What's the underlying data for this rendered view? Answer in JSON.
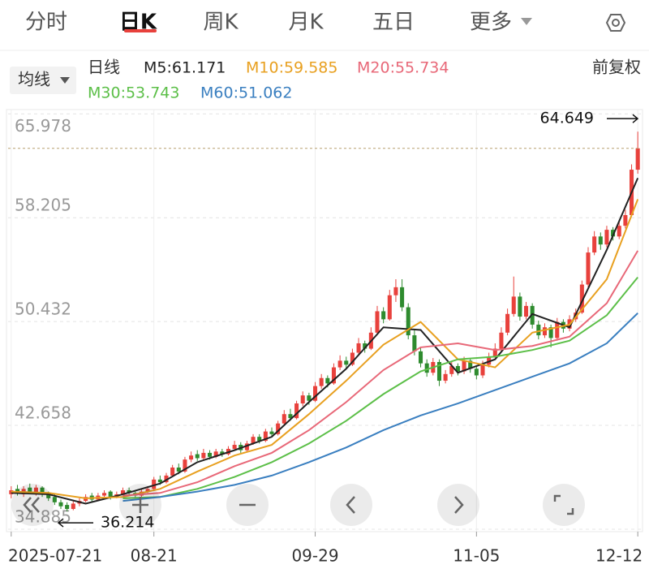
{
  "tabs": [
    "分时",
    "日K",
    "周K",
    "月K",
    "五日",
    "更多"
  ],
  "toolbar": {
    "ma_button": "均线",
    "period": "日线",
    "adjust": "前复权"
  },
  "chart_data": {
    "type": "candlestick",
    "candles": [
      [
        37.5,
        38.1,
        37.2,
        37.8
      ],
      [
        37.9,
        38.2,
        37.4,
        37.6
      ],
      [
        37.5,
        38.1,
        37.3,
        37.9
      ],
      [
        38.0,
        38.3,
        37.5,
        37.7
      ],
      [
        37.6,
        38.2,
        37.4,
        38.0
      ],
      [
        38.0,
        38.1,
        37.3,
        37.5
      ],
      [
        37.5,
        37.7,
        37.0,
        37.2
      ],
      [
        37.3,
        37.5,
        36.7,
        36.9
      ],
      [
        36.9,
        37.1,
        36.4,
        36.6
      ],
      [
        36.7,
        36.9,
        36.214,
        36.4
      ],
      [
        36.4,
        37.0,
        36.3,
        36.8
      ],
      [
        36.8,
        37.2,
        36.6,
        37.0
      ],
      [
        37.0,
        37.5,
        36.9,
        37.3
      ],
      [
        37.4,
        37.6,
        36.9,
        37.1
      ],
      [
        37.1,
        37.6,
        37.0,
        37.4
      ],
      [
        37.4,
        37.8,
        37.2,
        37.6
      ],
      [
        37.7,
        37.8,
        37.1,
        37.3
      ],
      [
        37.3,
        37.7,
        37.2,
        37.5
      ],
      [
        37.5,
        38.0,
        37.4,
        37.8
      ],
      [
        37.8,
        38.0,
        37.4,
        37.6
      ],
      [
        37.6,
        37.7,
        37.2,
        37.4
      ],
      [
        37.4,
        37.9,
        37.3,
        37.7
      ],
      [
        37.7,
        38.1,
        37.6,
        37.9
      ],
      [
        37.9,
        38.8,
        37.8,
        38.6
      ],
      [
        38.6,
        38.9,
        38.2,
        38.4
      ],
      [
        38.4,
        39.1,
        38.3,
        38.9
      ],
      [
        38.9,
        39.7,
        38.8,
        39.5
      ],
      [
        39.5,
        39.8,
        39.0,
        39.2
      ],
      [
        39.2,
        40.3,
        39.1,
        40.1
      ],
      [
        40.1,
        40.7,
        39.9,
        40.4
      ],
      [
        40.5,
        40.8,
        40.0,
        40.2
      ],
      [
        40.2,
        40.9,
        40.1,
        40.6
      ],
      [
        40.6,
        40.8,
        40.1,
        40.3
      ],
      [
        40.3,
        40.9,
        40.2,
        40.7
      ],
      [
        40.7,
        40.9,
        40.3,
        40.5
      ],
      [
        40.5,
        41.1,
        40.4,
        40.9
      ],
      [
        40.9,
        41.5,
        40.8,
        41.2
      ],
      [
        41.2,
        41.4,
        40.6,
        40.8
      ],
      [
        40.8,
        41.5,
        40.7,
        41.3
      ],
      [
        41.3,
        42.0,
        41.2,
        41.8
      ],
      [
        41.8,
        42.0,
        41.3,
        41.5
      ],
      [
        41.5,
        42.4,
        41.4,
        42.2
      ],
      [
        42.2,
        42.5,
        41.8,
        42.0
      ],
      [
        42.0,
        43.0,
        41.9,
        42.8
      ],
      [
        42.8,
        43.8,
        42.7,
        43.5
      ],
      [
        43.5,
        43.9,
        43.0,
        43.2
      ],
      [
        43.2,
        44.5,
        43.1,
        44.3
      ],
      [
        44.3,
        45.2,
        44.1,
        44.9
      ],
      [
        44.9,
        45.1,
        44.2,
        44.5
      ],
      [
        44.5,
        45.9,
        44.4,
        45.6
      ],
      [
        45.6,
        46.5,
        45.4,
        46.2
      ],
      [
        46.2,
        46.4,
        45.5,
        45.8
      ],
      [
        45.8,
        47.3,
        45.7,
        47.0
      ],
      [
        47.0,
        47.9,
        46.8,
        47.5
      ],
      [
        47.5,
        47.8,
        46.9,
        47.2
      ],
      [
        47.2,
        48.4,
        47.1,
        48.1
      ],
      [
        48.1,
        49.2,
        47.9,
        48.8
      ],
      [
        48.8,
        49.0,
        48.1,
        48.4
      ],
      [
        48.4,
        50.0,
        48.3,
        49.6
      ],
      [
        49.6,
        51.6,
        49.4,
        51.2
      ],
      [
        51.2,
        51.5,
        50.3,
        50.6
      ],
      [
        50.6,
        52.8,
        50.5,
        52.4
      ],
      [
        52.4,
        53.6,
        51.9,
        53.0
      ],
      [
        53.0,
        53.6,
        51.2,
        51.5
      ],
      [
        51.5,
        51.8,
        49.1,
        49.4
      ],
      [
        49.4,
        49.8,
        47.9,
        48.2
      ],
      [
        48.2,
        48.5,
        47.0,
        47.3
      ],
      [
        47.3,
        47.6,
        46.3,
        46.6
      ],
      [
        46.6,
        47.7,
        46.4,
        47.4
      ],
      [
        47.4,
        47.6,
        45.6,
        46.0
      ],
      [
        46.0,
        46.8,
        45.8,
        46.5
      ],
      [
        46.5,
        47.4,
        46.3,
        47.1
      ],
      [
        47.1,
        47.3,
        46.4,
        46.7
      ],
      [
        46.7,
        47.8,
        46.5,
        47.5
      ],
      [
        47.5,
        47.7,
        46.6,
        46.9
      ],
      [
        46.9,
        47.1,
        46.1,
        46.4
      ],
      [
        46.4,
        47.5,
        46.2,
        47.2
      ],
      [
        47.2,
        48.1,
        47.0,
        47.8
      ],
      [
        47.8,
        48.8,
        47.6,
        48.4
      ],
      [
        48.4,
        50.0,
        48.2,
        49.6
      ],
      [
        49.6,
        51.4,
        49.4,
        51.0
      ],
      [
        51.0,
        53.8,
        50.8,
        52.3
      ],
      [
        52.3,
        52.6,
        50.5,
        50.8
      ],
      [
        50.8,
        51.9,
        50.6,
        51.6
      ],
      [
        51.6,
        51.8,
        49.9,
        50.2
      ],
      [
        50.2,
        50.5,
        49.1,
        49.4
      ],
      [
        49.4,
        50.3,
        49.2,
        50.0
      ],
      [
        50.0,
        50.2,
        48.5,
        49.2
      ],
      [
        49.2,
        50.7,
        49.0,
        50.4
      ],
      [
        50.4,
        50.6,
        49.6,
        49.9
      ],
      [
        49.9,
        50.9,
        49.7,
        50.6
      ],
      [
        50.6,
        51.4,
        50.4,
        51.1
      ],
      [
        51.1,
        53.5,
        51.0,
        53.2
      ],
      [
        53.2,
        56.0,
        53.0,
        55.6
      ],
      [
        55.6,
        57.2,
        55.4,
        56.8
      ],
      [
        56.8,
        57.1,
        55.8,
        56.2
      ],
      [
        56.2,
        57.6,
        56.0,
        57.3
      ],
      [
        57.3,
        57.5,
        56.5,
        56.8
      ],
      [
        56.8,
        57.9,
        56.6,
        57.6
      ],
      [
        57.6,
        58.8,
        57.4,
        58.4
      ],
      [
        58.4,
        62.2,
        58.3,
        61.8
      ],
      [
        61.8,
        64.649,
        61.5,
        63.4
      ]
    ],
    "up_color": "#e8413c",
    "down_color": "#2e8b2e",
    "ma": {
      "x": [
        0,
        6,
        12,
        18,
        24,
        30,
        36,
        42,
        48,
        54,
        60,
        66,
        72,
        78,
        84,
        90,
        96,
        101
      ],
      "series": [
        {
          "name": "M5:61.171",
          "color": "#222222",
          "values": [
            37.6,
            37.5,
            36.8,
            37.5,
            38.3,
            39.9,
            40.8,
            41.8,
            44.4,
            46.9,
            50.0,
            49.8,
            46.6,
            47.6,
            51.0,
            50.0,
            55.8,
            61.171
          ]
        },
        {
          "name": "M10:59.585",
          "color": "#e8a020",
          "values": [
            37.7,
            37.6,
            37.2,
            37.3,
            37.9,
            39.2,
            40.4,
            41.2,
            43.5,
            46.0,
            48.7,
            50.4,
            47.6,
            47.0,
            49.6,
            50.2,
            53.6,
            59.585
          ]
        },
        {
          "name": "M20:55.734",
          "color": "#e86878",
          "values": [
            null,
            null,
            null,
            37.4,
            37.6,
            38.4,
            39.6,
            40.6,
            42.3,
            44.4,
            46.8,
            48.5,
            48.8,
            48.3,
            48.6,
            49.3,
            51.8,
            55.734
          ]
        },
        {
          "name": "M30:53.743",
          "color": "#5cbf48",
          "values": [
            null,
            null,
            null,
            37.2,
            37.3,
            37.9,
            38.8,
            39.9,
            41.3,
            43.0,
            45.0,
            46.7,
            47.6,
            47.8,
            48.3,
            49.0,
            50.9,
            53.743
          ]
        },
        {
          "name": "M60:51.062",
          "color": "#3a7fc0",
          "values": [
            null,
            null,
            null,
            37.0,
            37.3,
            37.7,
            38.2,
            38.9,
            39.9,
            41.0,
            42.3,
            43.4,
            44.3,
            45.3,
            46.3,
            47.3,
            48.8,
            51.062
          ]
        }
      ]
    },
    "ylim": [
      34.7,
      66.3
    ],
    "yticks": [
      65.978,
      58.205,
      50.432,
      42.658,
      34.885
    ],
    "xlim": [
      -0.5,
      101.5
    ],
    "xticks": [
      {
        "value": 0,
        "label": "2025-07-21"
      },
      {
        "value": 23,
        "label": "08-21"
      },
      {
        "value": 49,
        "label": "09-29"
      },
      {
        "value": 75,
        "label": "11-05"
      },
      {
        "value": 101,
        "label": "12-12"
      }
    ],
    "high_label": 64.649,
    "low_label": 36.214,
    "grid": true
  }
}
